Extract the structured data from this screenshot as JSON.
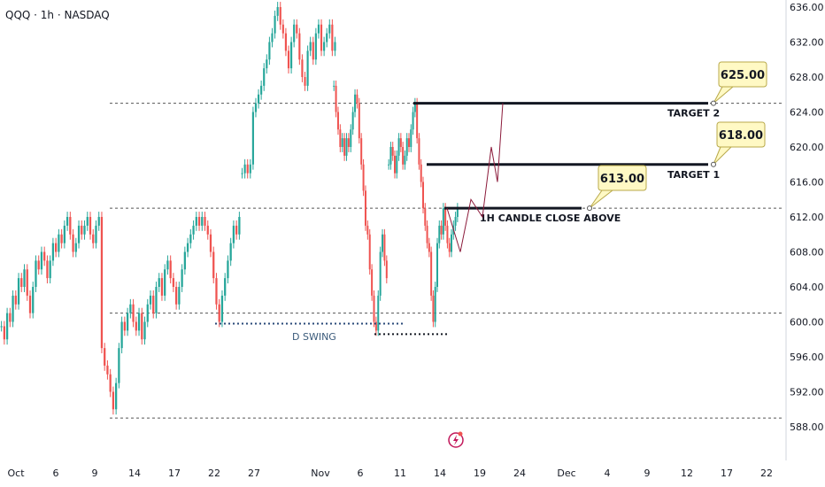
{
  "header": {
    "title": "QQQ · 1h · NASDAQ"
  },
  "chart_data": {
    "type": "candlestick",
    "ylim": [
      586.0,
      637.0
    ],
    "y_ticks": [
      "636.00",
      "632.00",
      "628.00",
      "624.00",
      "620.00",
      "616.00",
      "612.00",
      "608.00",
      "604.00",
      "600.00",
      "596.00",
      "592.00",
      "588.00"
    ],
    "x_ticks": [
      "Oct",
      "6",
      "9",
      "14",
      "17",
      "22",
      "27",
      "Nov",
      "6",
      "11",
      "14",
      "19",
      "24",
      "Dec",
      "4",
      "9",
      "12",
      "17",
      "22"
    ],
    "colors": {
      "up": "#26a69a",
      "down": "#ef5350",
      "line": "#131722",
      "projection": "#8b1a3a",
      "callout_bg": "#fff9c4",
      "callout_border": "#b8a94a"
    },
    "levels": [
      {
        "label": "TARGET 2",
        "callout": "625.00",
        "value": 625.0
      },
      {
        "label": "TARGET 1",
        "callout": "618.00",
        "value": 618.0
      },
      {
        "label": "1H CANDLE CLOSE ABOVE",
        "callout": "613.00",
        "value": 613.0
      }
    ],
    "dashed_levels": [
      625.0,
      613.0,
      601.0,
      589.0
    ],
    "annotations": {
      "swing_label": "D SWING"
    },
    "projection_path": [
      613.0,
      608.0,
      614.0,
      612.0,
      620.0,
      616.0,
      625.0
    ],
    "series": [
      {
        "segment": "oct",
        "values": [
          599.5,
          598,
          601,
          600,
          603,
          602,
          605,
          604,
          606,
          603,
          601,
          604,
          607,
          606,
          608,
          607,
          605,
          607,
          609,
          608,
          610,
          609,
          611,
          612,
          610,
          608,
          609,
          611,
          610,
          611,
          612,
          610,
          609,
          611,
          612,
          597,
          595,
          594,
          592,
          590,
          593,
          597,
          600,
          599,
          601,
          602,
          600,
          599,
          601,
          598,
          600,
          602,
          603,
          601,
          604,
          605,
          603,
          606,
          607,
          605,
          604,
          602,
          604,
          606,
          608,
          609,
          610,
          611,
          612,
          611,
          612,
          611,
          610,
          608,
          605,
          602,
          600,
          603,
          605,
          607,
          609,
          611,
          610,
          612
        ]
      },
      {
        "segment": "late_oct",
        "values": [
          617,
          618,
          617,
          618,
          624,
          625,
          626,
          627,
          629,
          630,
          632,
          633,
          635,
          636,
          634,
          633,
          631,
          629,
          632,
          634,
          633,
          630,
          628,
          627,
          631,
          632,
          630,
          633,
          634,
          631,
          632,
          633,
          634,
          631,
          632
        ]
      },
      {
        "segment": "early_nov",
        "values": [
          627,
          624,
          622,
          620,
          621,
          619,
          621,
          620,
          622,
          624,
          626,
          625,
          621,
          618,
          615,
          611,
          610,
          606,
          603,
          600,
          599,
          603,
          608,
          610,
          607,
          605
        ]
      },
      {
        "segment": "mid_nov",
        "values": [
          618,
          620,
          619,
          617,
          619,
          621,
          620,
          618,
          619,
          621,
          620,
          622,
          624,
          625,
          621,
          618,
          616,
          613,
          611,
          609,
          608,
          603,
          600,
          604,
          609,
          611,
          610,
          613,
          611,
          609,
          608,
          610,
          611,
          612,
          613
        ]
      }
    ]
  }
}
